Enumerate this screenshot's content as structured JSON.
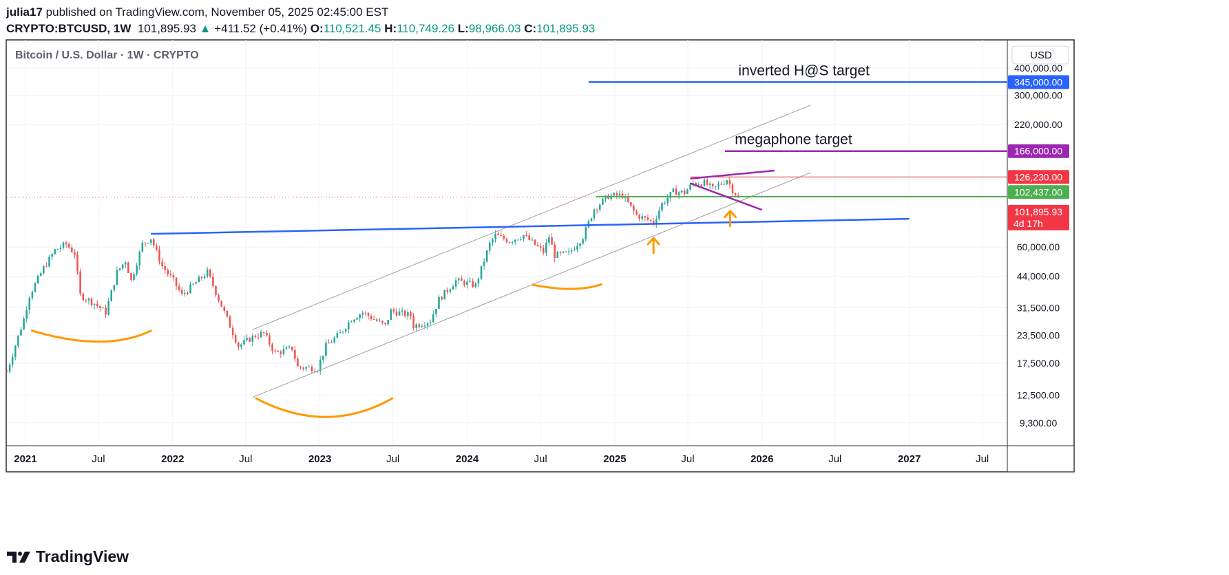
{
  "header": {
    "author": "julia17",
    "published_text": "published on TradingView.com, November 05, 2025 02:45:00 EST",
    "symbol": "CRYPTO:BTCUSD",
    "interval": "1W",
    "last_price": "101,895.93",
    "change_arrow": "▲",
    "change": "+411.52 (+0.41%)",
    "o_label": "O:",
    "o_value": "110,521.45",
    "h_label": "H:",
    "h_value": "110,749.26",
    "l_label": "L:",
    "l_value": "98,966.03",
    "c_label": "C:",
    "c_value": "101,895.93"
  },
  "footer": {
    "brand": "TradingView"
  },
  "colors": {
    "up": "#089981",
    "down": "#f23645",
    "candle_up": "#26a69a",
    "candle_down": "#ef5350",
    "blue": "#2962ff",
    "purple": "#9c27b0",
    "orange": "#ff9800",
    "green": "#4caf50",
    "red_label": "#f23645",
    "channel": "#9e9e9e"
  },
  "chart_data": {
    "type": "candlestick",
    "title": "Bitcoin / U.S. Dollar · 1W · CRYPTO",
    "currency": "USD",
    "y_scale": "log",
    "x_range": [
      "2020-11-16",
      "2027-09-01"
    ],
    "y_range": [
      7300,
      540000
    ],
    "x_ticks": [
      {
        "t": "2021-01-01",
        "label": "2021",
        "bold": true
      },
      {
        "t": "2021-07-01",
        "label": "Jul",
        "bold": false
      },
      {
        "t": "2022-01-01",
        "label": "2022",
        "bold": true
      },
      {
        "t": "2022-07-01",
        "label": "Jul",
        "bold": false
      },
      {
        "t": "2023-01-01",
        "label": "2023",
        "bold": true
      },
      {
        "t": "2023-07-01",
        "label": "Jul",
        "bold": false
      },
      {
        "t": "2024-01-01",
        "label": "2024",
        "bold": true
      },
      {
        "t": "2024-07-01",
        "label": "Jul",
        "bold": false
      },
      {
        "t": "2025-01-01",
        "label": "2025",
        "bold": true
      },
      {
        "t": "2025-07-01",
        "label": "Jul",
        "bold": false
      },
      {
        "t": "2026-01-01",
        "label": "2026",
        "bold": true
      },
      {
        "t": "2026-07-01",
        "label": "Jul",
        "bold": false
      },
      {
        "t": "2027-01-01",
        "label": "2027",
        "bold": true
      },
      {
        "t": "2027-07-01",
        "label": "Jul",
        "bold": false
      }
    ],
    "y_ticks": [
      {
        "v": 400000,
        "label": "400,000.00"
      },
      {
        "v": 300000,
        "label": "300,000.00"
      },
      {
        "v": 220000,
        "label": "220,000.00"
      },
      {
        "v": 60000,
        "label": "60,000.00"
      },
      {
        "v": 44000,
        "label": "44,000.00"
      },
      {
        "v": 31500,
        "label": "31,500.00"
      },
      {
        "v": 23500,
        "label": "23,500.00"
      },
      {
        "v": 17500,
        "label": "17,500.00"
      },
      {
        "v": 12500,
        "label": "12,500.00"
      },
      {
        "v": 9300,
        "label": "9,300.00"
      }
    ],
    "price_tags": [
      {
        "v": 345000,
        "label": "345,000.00",
        "color": "#2962ff"
      },
      {
        "v": 166000,
        "label": "166,000.00",
        "color": "#9c27b0"
      },
      {
        "v": 126230,
        "label": "126,230.00",
        "color": "#f23645"
      },
      {
        "v": 102437,
        "label": "102,437.00",
        "color": "#4caf50"
      },
      {
        "v": 101895.93,
        "label": "101,895.93",
        "sublabel": "4d 17h",
        "color": "#f23645"
      }
    ],
    "keypoints": [
      [
        "2020-11-16",
        16000
      ],
      [
        "2020-12-28",
        28000
      ],
      [
        "2021-01-11",
        36000
      ],
      [
        "2021-02-15",
        48000
      ],
      [
        "2021-03-15",
        58000
      ],
      [
        "2021-04-12",
        62000
      ],
      [
        "2021-05-03",
        56000
      ],
      [
        "2021-05-17",
        36000
      ],
      [
        "2021-06-21",
        33000
      ],
      [
        "2021-07-19",
        30000
      ],
      [
        "2021-08-16",
        46000
      ],
      [
        "2021-09-06",
        52000
      ],
      [
        "2021-09-20",
        42000
      ],
      [
        "2021-10-18",
        62000
      ],
      [
        "2021-11-08",
        66000
      ],
      [
        "2021-12-06",
        49000
      ],
      [
        "2022-01-03",
        42000
      ],
      [
        "2022-01-24",
        36000
      ],
      [
        "2022-03-28",
        46000
      ],
      [
        "2022-05-09",
        30000
      ],
      [
        "2022-06-13",
        21000
      ],
      [
        "2022-07-25",
        23500
      ],
      [
        "2022-08-15",
        24000
      ],
      [
        "2022-09-12",
        19500
      ],
      [
        "2022-10-24",
        20500
      ],
      [
        "2022-11-07",
        16800
      ],
      [
        "2022-12-26",
        16600
      ],
      [
        "2023-01-16",
        21000
      ],
      [
        "2023-02-20",
        24000
      ],
      [
        "2023-03-20",
        28000
      ],
      [
        "2023-04-17",
        30000
      ],
      [
        "2023-06-12",
        26000
      ],
      [
        "2023-06-26",
        30500
      ],
      [
        "2023-08-14",
        29000
      ],
      [
        "2023-08-21",
        26000
      ],
      [
        "2023-10-02",
        27500
      ],
      [
        "2023-10-23",
        34500
      ],
      [
        "2023-12-04",
        42000
      ],
      [
        "2024-01-22",
        40000
      ],
      [
        "2024-02-26",
        62000
      ],
      [
        "2024-03-11",
        68000
      ],
      [
        "2024-04-15",
        64000
      ],
      [
        "2024-05-20",
        68000
      ],
      [
        "2024-06-24",
        60000
      ],
      [
        "2024-07-08",
        57000
      ],
      [
        "2024-07-22",
        67000
      ],
      [
        "2024-08-05",
        55000
      ],
      [
        "2024-09-09",
        56000
      ],
      [
        "2024-10-14",
        67000
      ],
      [
        "2024-11-11",
        90000
      ],
      [
        "2024-12-16",
        103000
      ],
      [
        "2025-01-20",
        104000
      ],
      [
        "2025-02-24",
        84000
      ],
      [
        "2025-03-10",
        82000
      ],
      [
        "2025-04-07",
        78000
      ],
      [
        "2025-04-28",
        95000
      ],
      [
        "2025-05-26",
        108000
      ],
      [
        "2025-06-23",
        107000
      ],
      [
        "2025-07-14",
        118000
      ],
      [
        "2025-08-11",
        119000
      ],
      [
        "2025-09-01",
        111000
      ],
      [
        "2025-10-06",
        123000
      ],
      [
        "2025-10-20",
        110000
      ],
      [
        "2025-11-03",
        101895.93
      ]
    ],
    "annotations": {
      "channel_lines": [
        {
          "from": [
            "2022-07-18",
            25000
          ],
          "to": [
            "2026-05-01",
            270000
          ]
        },
        {
          "from": [
            "2022-07-18",
            12200
          ],
          "to": [
            "2026-05-01",
            132000
          ]
        }
      ],
      "neckline": {
        "from": [
          "2021-11-08",
          69000
        ],
        "to": [
          "2027-01-01",
          81000
        ],
        "color": "#2962ff"
      },
      "target_lines": [
        {
          "from": "2024-10-28",
          "to": "2027-09-01",
          "v": 345000,
          "color": "#2962ff",
          "text": "inverted H@S target",
          "text_at": "2026-04-15"
        },
        {
          "from": "2025-10-01",
          "to": "2027-09-01",
          "v": 166000,
          "color": "#9c27b0",
          "text": "megaphone target",
          "text_at": "2026-03-20"
        }
      ],
      "horizontal_red": {
        "from": "2025-07-07",
        "to": "2027-09-01",
        "v": 126230
      },
      "horizontal_green": {
        "from": "2024-11-15",
        "to": "2027-09-01",
        "v": 102437
      },
      "megaphone": [
        {
          "from": [
            "2025-07-07",
            124000
          ],
          "to": [
            "2026-02-01",
            135000
          ]
        },
        {
          "from": [
            "2025-07-07",
            118000
          ],
          "to": [
            "2026-01-01",
            89000
          ]
        }
      ],
      "smiles": [
        {
          "from": [
            "2021-01-15",
            24800
          ],
          "mid": [
            "2021-07-01",
            22000
          ],
          "to": [
            "2021-11-10",
            24800
          ]
        },
        {
          "from": [
            "2022-07-25",
            12100
          ],
          "mid": [
            "2023-01-15",
            9900
          ],
          "to": [
            "2023-07-01",
            12100
          ]
        },
        {
          "from": [
            "2024-06-10",
            40300
          ],
          "mid": [
            "2024-09-15",
            38500
          ],
          "to": [
            "2024-12-01",
            40500
          ]
        }
      ],
      "arrows": [
        {
          "t": "2025-04-07",
          "v": 66000
        },
        {
          "t": "2025-10-14",
          "v": 88000
        }
      ]
    }
  }
}
